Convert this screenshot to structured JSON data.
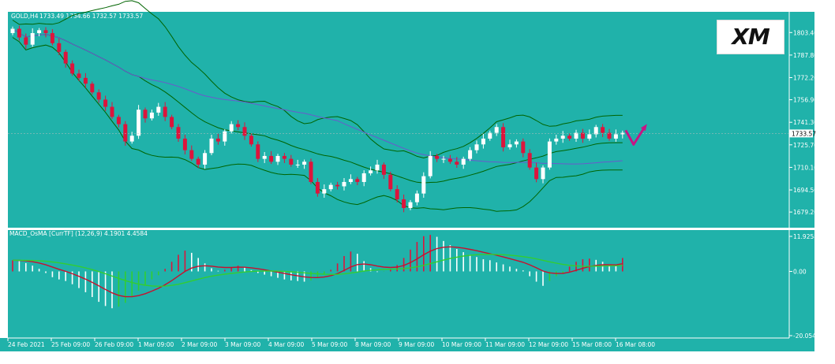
{
  "header": {
    "symbol_label": "GOLD,H4",
    "ohlc_label": "1733.49 1734.66 1732.57 1733.57",
    "indicator_label": "MACD_OsMA [CurrTF] (12,26,9) 4.1901 4.4584",
    "logo_text": "XM"
  },
  "chart_data": [
    {
      "type": "candlestick",
      "symbol": "GOLD",
      "timeframe": "H4",
      "ylim": [
        1670,
        1815
      ],
      "y_ticks": [
        "1803.40",
        "1787.80",
        "1772.20",
        "1756.90",
        "1741.30",
        "1725.70",
        "1710.10",
        "1694.50",
        "1679.20"
      ],
      "current_price_label": "1733.57",
      "current_price": 1733.57,
      "x_ticks": [
        "24 Feb 2021",
        "25 Feb 09:00",
        "26 Feb 09:00",
        "1 Mar 09:00",
        "2 Mar 09:00",
        "3 Mar 09:00",
        "4 Mar 09:00",
        "5 Mar 09:00",
        "8 Mar 09:00",
        "9 Mar 09:00",
        "10 Mar 09:00",
        "11 Mar 09:00",
        "12 Mar 09:00",
        "15 Mar 08:00",
        "16 Mar 08:00"
      ],
      "closes": [
        1806,
        1800,
        1795,
        1803,
        1805,
        1803,
        1796,
        1790,
        1782,
        1775,
        1772,
        1768,
        1762,
        1757,
        1752,
        1745,
        1740,
        1728,
        1732,
        1750,
        1744,
        1748,
        1752,
        1745,
        1738,
        1730,
        1722,
        1716,
        1712,
        1720,
        1730,
        1728,
        1735,
        1740,
        1738,
        1732,
        1726,
        1716,
        1718,
        1714,
        1718,
        1716,
        1712,
        1712,
        1714,
        1700,
        1692,
        1695,
        1698,
        1697,
        1700,
        1702,
        1700,
        1706,
        1708,
        1712,
        1705,
        1695,
        1688,
        1682,
        1686,
        1692,
        1704,
        1718,
        1716,
        1716,
        1714,
        1712,
        1716,
        1722,
        1726,
        1730,
        1734,
        1738,
        1724,
        1726,
        1728,
        1720,
        1710,
        1702,
        1710,
        1728,
        1730,
        1732,
        1730,
        1734,
        1730,
        1733,
        1738,
        1734,
        1730,
        1733,
        1734
      ],
      "candles_shown": 93,
      "bollinger_bands": true,
      "moving_average": true,
      "forecast_arrow": "down then up"
    },
    {
      "type": "histogram",
      "name": "MACD_OsMA [CurrTF] (12,26,9)",
      "ylim": [
        -20.0543,
        11.9258
      ],
      "y_ticks": [
        "11.9258",
        "0.00",
        "-20.0543"
      ],
      "values": [
        3.5,
        3.2,
        2.6,
        1.8,
        0.8,
        -0.5,
        -1.8,
        -2.5,
        -3.0,
        -4.0,
        -5.2,
        -6.5,
        -8.0,
        -9.5,
        -10.8,
        -11.5,
        -11.0,
        -9.8,
        -8.0,
        -6.0,
        -4.2,
        -2.5,
        -1.2,
        0.8,
        3.0,
        5.2,
        6.5,
        5.8,
        4.2,
        2.5,
        1.0,
        0.2,
        0.5,
        1.2,
        1.8,
        1.2,
        0.4,
        -0.5,
        -1.0,
        -1.5,
        -2.0,
        -2.5,
        -2.8,
        -3.0,
        -3.2,
        -2.8,
        -2.0,
        -1.0,
        0.5,
        2.5,
        4.8,
        6.2,
        5.5,
        3.2,
        1.0,
        -0.2,
        -0.1,
        0.6,
        2.0,
        4.2,
        6.8,
        9.2,
        11.0,
        11.4,
        10.8,
        9.5,
        8.2,
        7.0,
        6.0,
        5.2,
        4.5,
        3.8,
        3.5,
        2.8,
        2.2,
        1.5,
        0.8,
        0.3,
        -1.5,
        -3.2,
        -4.5,
        -3.0,
        -1.5,
        -0.5,
        1.5,
        3.0,
        3.8,
        4.0,
        3.6,
        3.0,
        2.0,
        1.8,
        4.2
      ],
      "signal_line": true,
      "osma_line": true
    }
  ],
  "colors": {
    "background": "#20b2aa",
    "grid": "#ffffff",
    "bull_candle": "#ffffff",
    "bear_candle": "#dc143c",
    "bands": "#006400",
    "moving_average": "#6a5acd",
    "hist_up": "#dc143c",
    "hist_down": "#ffffff",
    "hist_green": "#32cd32",
    "macd_line": "#c8102e",
    "signal_line": "#32cd32",
    "arrow": "#c71585"
  }
}
